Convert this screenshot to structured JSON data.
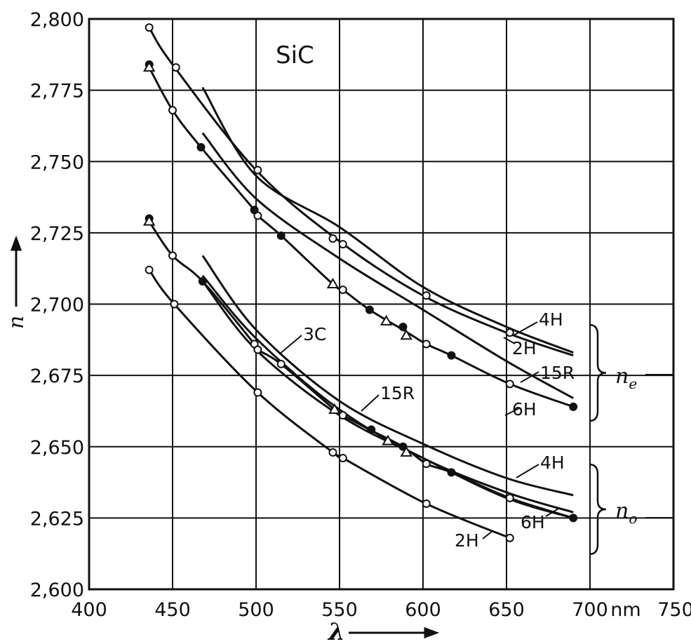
{
  "chart_data": {
    "type": "line",
    "title": "SiC",
    "xlabel": "λ",
    "ylabel": "n",
    "x_unit": "nm",
    "xlim": [
      400,
      750
    ],
    "ylim": [
      2.6,
      2.8
    ],
    "grid": true,
    "x_ticks": [
      "400",
      "450",
      "500",
      "550",
      "600",
      "650",
      "700",
      "750"
    ],
    "y_ticks": [
      "2,600",
      "2,625",
      "2,650",
      "2,675",
      "2,700",
      "2,725",
      "2,750",
      "2,775",
      "2,800"
    ],
    "groups": [
      {
        "label": "n",
        "subscript": "e"
      },
      {
        "label": "n",
        "subscript": "o"
      }
    ],
    "series": [
      {
        "name": "4H",
        "group": "e",
        "x": [
          468,
          500,
          550,
          600,
          650,
          690
        ],
        "y": [
          2.776,
          2.745,
          2.727,
          2.706,
          2.692,
          2.683
        ]
      },
      {
        "name": "2H",
        "group": "e",
        "x": [
          436,
          450,
          500,
          550,
          600,
          650,
          690
        ],
        "y": [
          2.797,
          2.784,
          2.747,
          2.722,
          2.703,
          2.69,
          2.682
        ]
      },
      {
        "name": "15R",
        "group": "e",
        "x": [
          468,
          500,
          550,
          600,
          650,
          690
        ],
        "y": [
          2.76,
          2.737,
          2.716,
          2.698,
          2.68,
          2.667
        ]
      },
      {
        "name": "6H",
        "group": "e",
        "x": [
          436,
          450,
          467,
          499,
          501,
          515,
          546,
          552,
          568,
          588,
          602,
          617,
          652,
          690
        ],
        "y": [
          2.783,
          2.768,
          2.755,
          2.733,
          2.731,
          2.724,
          2.707,
          2.705,
          2.698,
          2.691,
          2.686,
          2.682,
          2.672,
          2.664
        ]
      },
      {
        "name": "3C",
        "group": "o",
        "x": [
          436,
          450,
          468,
          499,
          501,
          515,
          547,
          552,
          568,
          588,
          602,
          617,
          652,
          690
        ],
        "y": [
          2.729,
          2.717,
          2.708,
          2.686,
          2.684,
          2.679,
          2.663,
          2.661,
          2.656,
          2.65,
          2.644,
          2.641,
          2.632,
          2.625
        ]
      },
      {
        "name": "4H",
        "group": "o",
        "x": [
          468,
          500,
          550,
          600,
          650,
          690
        ],
        "y": [
          2.717,
          2.691,
          2.666,
          2.651,
          2.639,
          2.633
        ]
      },
      {
        "name": "15R",
        "group": "o",
        "x": [
          468,
          500,
          550,
          600,
          650,
          690
        ],
        "y": [
          2.71,
          2.688,
          2.663,
          2.646,
          2.634,
          2.627
        ]
      },
      {
        "name": "6H",
        "group": "o",
        "x": [
          468,
          500,
          550,
          600,
          650,
          690
        ],
        "y": [
          2.708,
          2.684,
          2.661,
          2.646,
          2.632,
          2.625
        ]
      },
      {
        "name": "2H",
        "group": "o",
        "x": [
          436,
          451,
          501,
          546,
          552,
          602,
          652
        ],
        "y": [
          2.712,
          2.7,
          2.669,
          2.648,
          2.646,
          2.63,
          2.618
        ]
      }
    ],
    "markers": {
      "open_circles": [
        [
          436,
          2.797
        ],
        [
          452,
          2.783
        ],
        [
          450,
          2.768
        ],
        [
          501,
          2.747
        ],
        [
          501,
          2.731
        ],
        [
          546,
          2.723
        ],
        [
          552,
          2.721
        ],
        [
          552,
          2.705
        ],
        [
          602,
          2.703
        ],
        [
          602,
          2.686
        ],
        [
          652,
          2.69
        ],
        [
          652,
          2.672
        ],
        [
          436,
          2.712
        ],
        [
          451,
          2.7
        ],
        [
          450,
          2.717
        ],
        [
          499,
          2.686
        ],
        [
          501,
          2.684
        ],
        [
          501,
          2.669
        ],
        [
          515,
          2.679
        ],
        [
          546,
          2.648
        ],
        [
          552,
          2.646
        ],
        [
          552,
          2.661
        ],
        [
          602,
          2.644
        ],
        [
          602,
          2.63
        ],
        [
          652,
          2.632
        ],
        [
          652,
          2.618
        ]
      ],
      "filled_circles": [
        [
          436,
          2.784
        ],
        [
          467,
          2.755
        ],
        [
          499,
          2.733
        ],
        [
          515,
          2.724
        ],
        [
          568,
          2.698
        ],
        [
          588,
          2.692
        ],
        [
          617,
          2.682
        ],
        [
          690,
          2.664
        ],
        [
          436,
          2.73
        ],
        [
          468,
          2.708
        ],
        [
          569,
          2.656
        ],
        [
          588,
          2.65
        ],
        [
          617,
          2.641
        ],
        [
          690,
          2.625
        ]
      ],
      "triangles": [
        [
          436,
          2.783
        ],
        [
          546,
          2.707
        ],
        [
          578,
          2.694
        ],
        [
          590,
          2.689
        ],
        [
          436,
          2.729
        ],
        [
          547,
          2.663
        ],
        [
          579,
          2.652
        ],
        [
          590,
          2.648
        ]
      ]
    }
  }
}
